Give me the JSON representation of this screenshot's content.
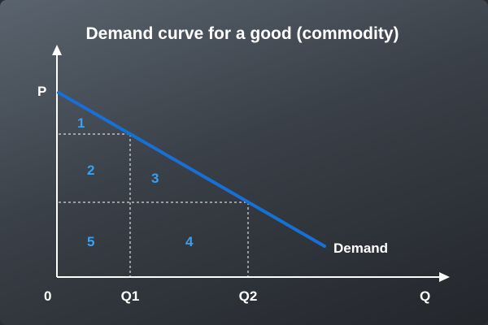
{
  "title": "Demand curve for a good (commodity)",
  "axes": {
    "y_label": "P",
    "x_label": "Q",
    "origin_label": "0",
    "x_ticks": [
      "Q1",
      "Q2"
    ]
  },
  "regions": [
    "1",
    "2",
    "3",
    "4",
    "5"
  ],
  "curve": {
    "label": "Demand",
    "color": "#1670d6"
  },
  "colors": {
    "axis": "#ffffff",
    "region_label": "#3aa0f0",
    "guide_lines": "#ffffff"
  }
}
